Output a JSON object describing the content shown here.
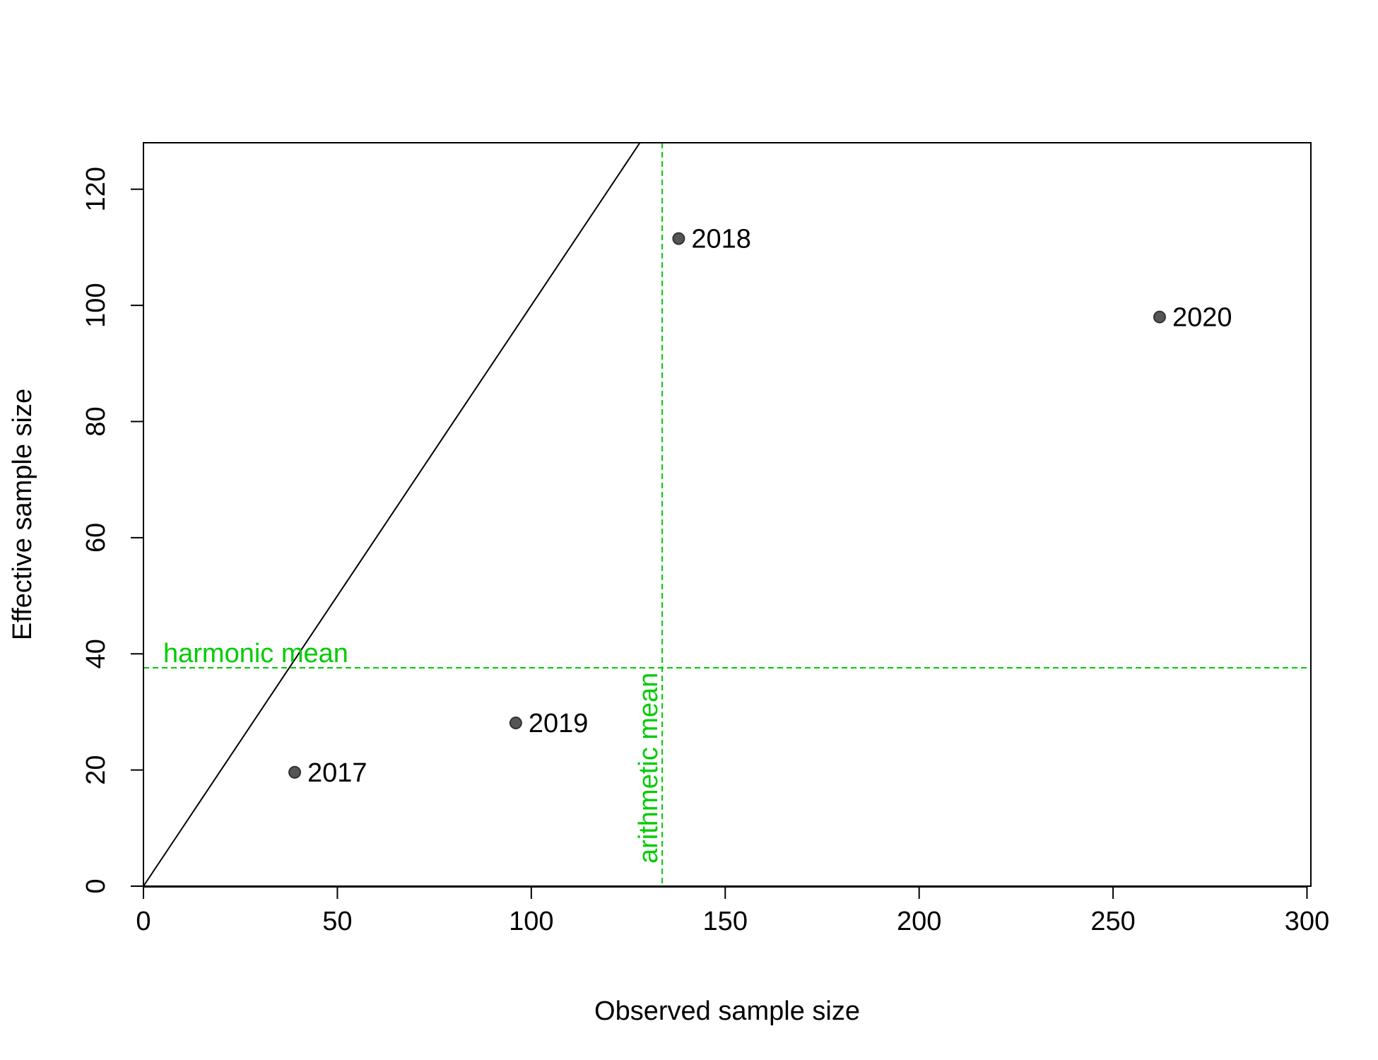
{
  "chart_data": {
    "type": "scatter",
    "title": "",
    "xlabel": "Observed sample size",
    "ylabel": "Effective sample size",
    "xlim": [
      0,
      301
    ],
    "ylim": [
      0,
      128
    ],
    "xticks": [
      0,
      50,
      100,
      150,
      200,
      250,
      300
    ],
    "yticks": [
      0,
      20,
      40,
      60,
      80,
      100,
      120
    ],
    "grid": false,
    "points": [
      {
        "label": "2017",
        "x": 39,
        "y": 19.6
      },
      {
        "label": "2018",
        "x": 138,
        "y": 111.5
      },
      {
        "label": "2019",
        "x": 96,
        "y": 28.1
      },
      {
        "label": "2020",
        "x": 262,
        "y": 98
      }
    ],
    "reference_line": {
      "type": "identity",
      "from": [
        0,
        0
      ],
      "to": [
        128,
        128
      ]
    },
    "harmonic_mean": {
      "label": "harmonic mean",
      "value": 37.6
    },
    "arithmetic_mean": {
      "label": "arithmetic mean",
      "value": 133.75
    },
    "colors": {
      "points": "#555555",
      "mean_lines": "#00cc00",
      "axes": "#000000"
    }
  }
}
